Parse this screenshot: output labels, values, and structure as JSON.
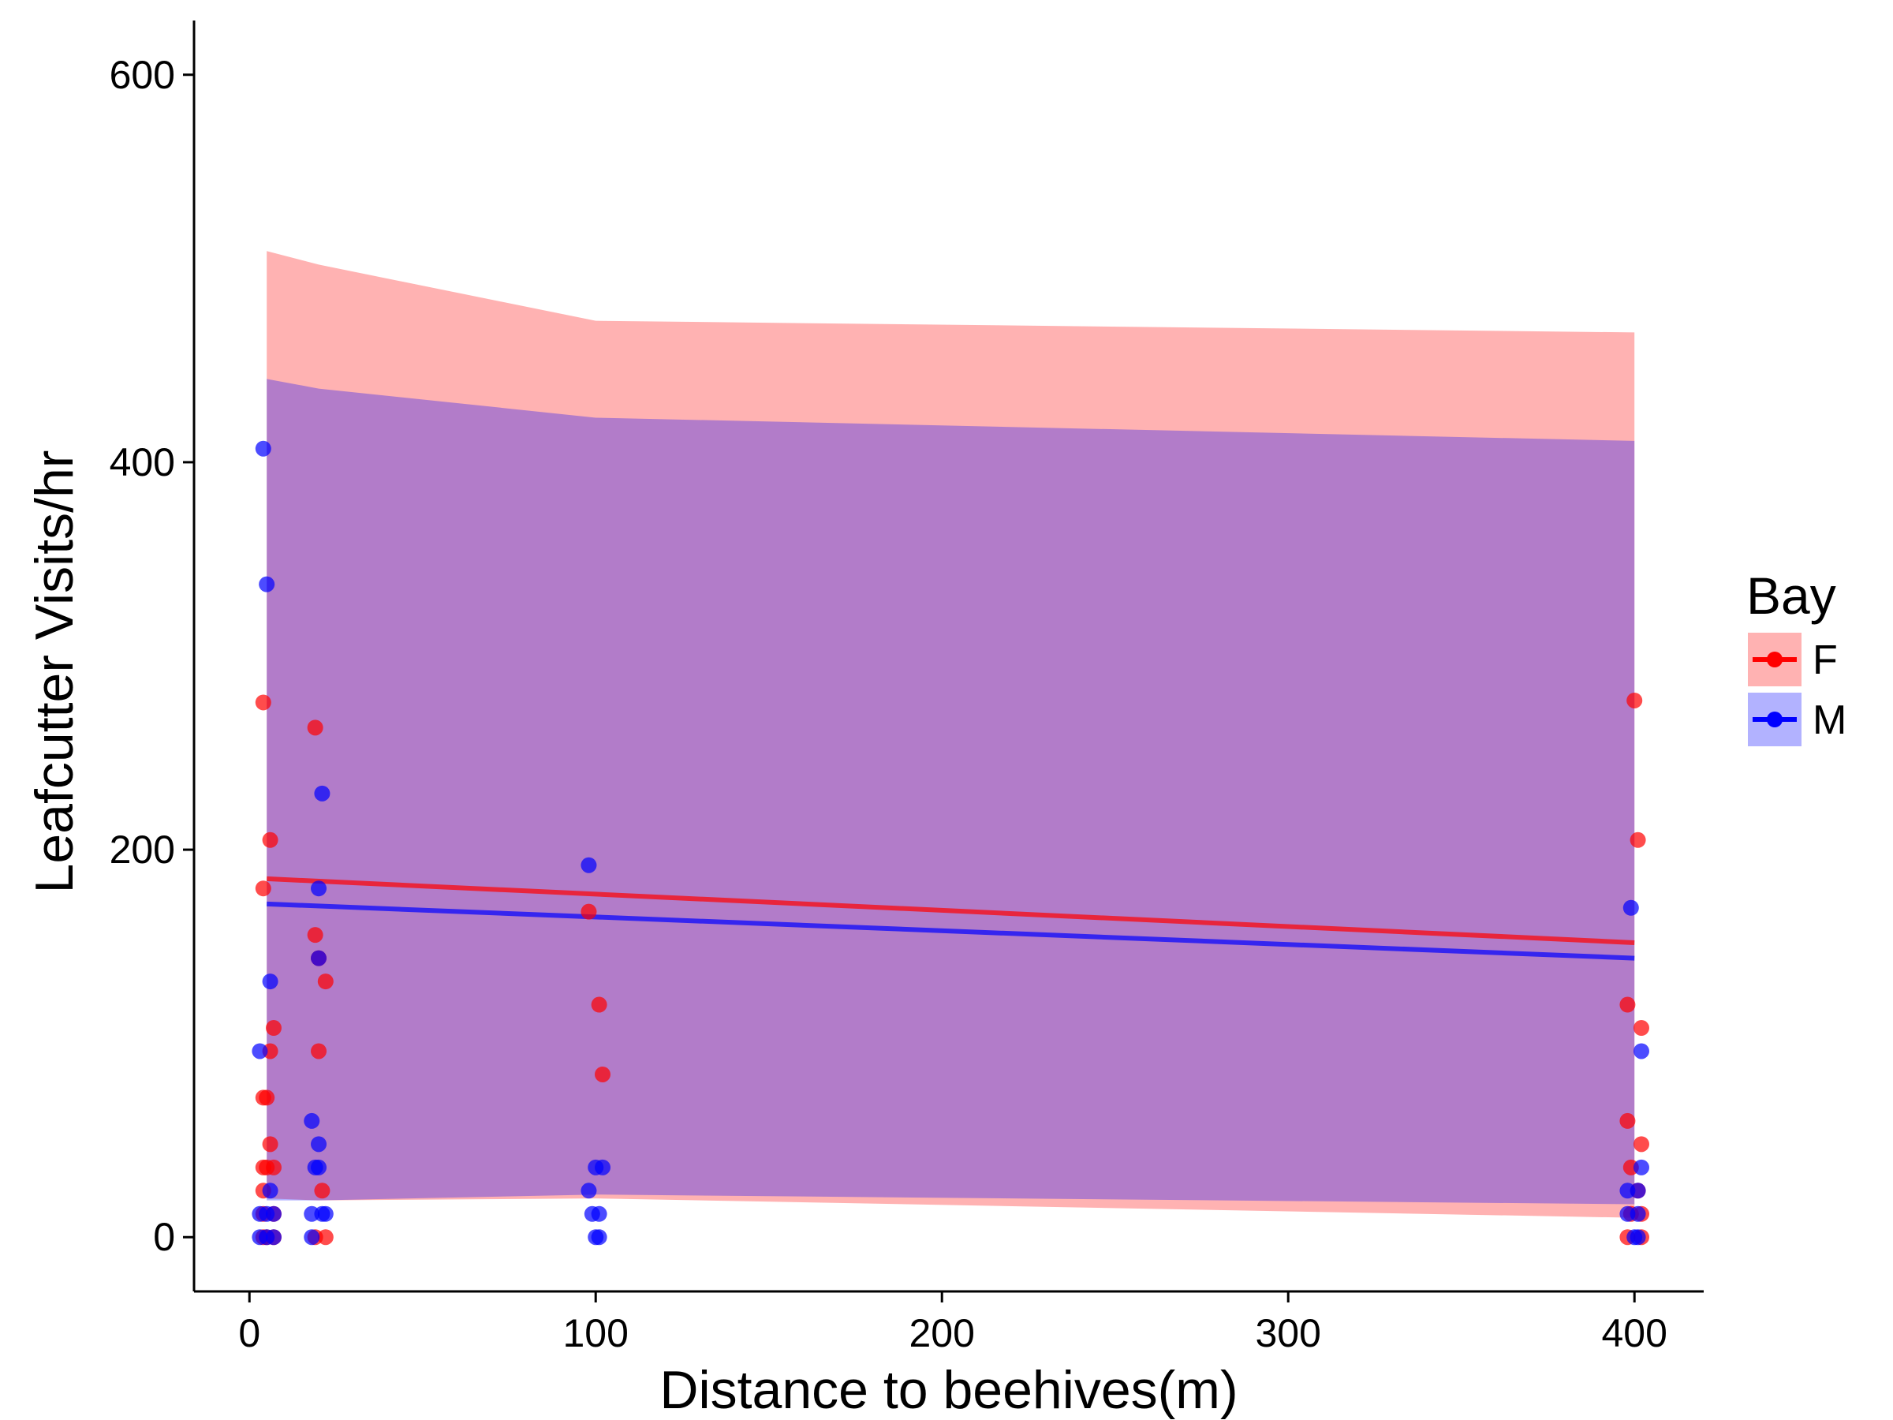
{
  "chart_data": {
    "type": "scatter",
    "title": "",
    "xlabel": "Distance to beehives(m)",
    "ylabel": "Leafcutter Visits/hr",
    "xlim": [
      -16,
      420
    ],
    "ylim": [
      -28,
      628
    ],
    "x_ticks": [
      0,
      100,
      200,
      300,
      400
    ],
    "y_ticks": [
      0,
      200,
      400,
      600
    ],
    "grid": false,
    "legend": {
      "title": "Bay",
      "position": "right"
    },
    "series": [
      {
        "name": "F",
        "color": "#ff0000",
        "points": [
          {
            "x": 4,
            "y": 0
          },
          {
            "x": 4,
            "y": 12
          },
          {
            "x": 4,
            "y": 24
          },
          {
            "x": 4,
            "y": 36
          },
          {
            "x": 4,
            "y": 72
          },
          {
            "x": 4,
            "y": 180
          },
          {
            "x": 4,
            "y": 276
          },
          {
            "x": 5,
            "y": 0
          },
          {
            "x": 5,
            "y": 36
          },
          {
            "x": 5,
            "y": 72
          },
          {
            "x": 6,
            "y": 48
          },
          {
            "x": 6,
            "y": 205
          },
          {
            "x": 6,
            "y": 96
          },
          {
            "x": 7,
            "y": 0
          },
          {
            "x": 7,
            "y": 12
          },
          {
            "x": 7,
            "y": 36
          },
          {
            "x": 7,
            "y": 108
          },
          {
            "x": 19,
            "y": 0
          },
          {
            "x": 19,
            "y": 156
          },
          {
            "x": 19,
            "y": 263
          },
          {
            "x": 20,
            "y": 144
          },
          {
            "x": 20,
            "y": 96
          },
          {
            "x": 21,
            "y": 24
          },
          {
            "x": 22,
            "y": 0
          },
          {
            "x": 22,
            "y": 132
          },
          {
            "x": 98,
            "y": 168
          },
          {
            "x": 101,
            "y": 120
          },
          {
            "x": 102,
            "y": 84
          },
          {
            "x": 398,
            "y": 0
          },
          {
            "x": 398,
            "y": 60
          },
          {
            "x": 398,
            "y": 120
          },
          {
            "x": 399,
            "y": 36
          },
          {
            "x": 399,
            "y": 12
          },
          {
            "x": 400,
            "y": 277
          },
          {
            "x": 401,
            "y": 205
          },
          {
            "x": 401,
            "y": 24
          },
          {
            "x": 402,
            "y": 48
          },
          {
            "x": 402,
            "y": 108
          },
          {
            "x": 402,
            "y": 0
          },
          {
            "x": 402,
            "y": 12
          }
        ],
        "fit": {
          "x": [
            5,
            400
          ],
          "y": [
            185,
            152
          ]
        },
        "ribbon": {
          "x": [
            5,
            20,
            100,
            400
          ],
          "upper": [
            509,
            502,
            473,
            467
          ],
          "lower": [
            20,
            19,
            20,
            10
          ]
        }
      },
      {
        "name": "M",
        "color": "#0000ff",
        "points": [
          {
            "x": 3,
            "y": 0
          },
          {
            "x": 3,
            "y": 12
          },
          {
            "x": 3,
            "y": 96
          },
          {
            "x": 4,
            "y": 407
          },
          {
            "x": 5,
            "y": 0
          },
          {
            "x": 5,
            "y": 337
          },
          {
            "x": 5,
            "y": 12
          },
          {
            "x": 6,
            "y": 132
          },
          {
            "x": 6,
            "y": 24
          },
          {
            "x": 7,
            "y": 0
          },
          {
            "x": 7,
            "y": 12
          },
          {
            "x": 18,
            "y": 0
          },
          {
            "x": 18,
            "y": 12
          },
          {
            "x": 18,
            "y": 60
          },
          {
            "x": 19,
            "y": 36
          },
          {
            "x": 20,
            "y": 36
          },
          {
            "x": 20,
            "y": 48
          },
          {
            "x": 20,
            "y": 180
          },
          {
            "x": 20,
            "y": 144
          },
          {
            "x": 21,
            "y": 12
          },
          {
            "x": 21,
            "y": 229
          },
          {
            "x": 22,
            "y": 12
          },
          {
            "x": 98,
            "y": 24
          },
          {
            "x": 98,
            "y": 192
          },
          {
            "x": 99,
            "y": 12
          },
          {
            "x": 100,
            "y": 0
          },
          {
            "x": 100,
            "y": 36
          },
          {
            "x": 101,
            "y": 12
          },
          {
            "x": 101,
            "y": 0
          },
          {
            "x": 102,
            "y": 36
          },
          {
            "x": 398,
            "y": 12
          },
          {
            "x": 398,
            "y": 24
          },
          {
            "x": 399,
            "y": 170
          },
          {
            "x": 400,
            "y": 0
          },
          {
            "x": 401,
            "y": 0
          },
          {
            "x": 401,
            "y": 12
          },
          {
            "x": 401,
            "y": 24
          },
          {
            "x": 402,
            "y": 36
          },
          {
            "x": 402,
            "y": 96
          }
        ],
        "fit": {
          "x": [
            5,
            400
          ],
          "y": [
            172,
            144
          ]
        },
        "ribbon": {
          "x": [
            5,
            20,
            100,
            400
          ],
          "upper": [
            443,
            438,
            423,
            411
          ],
          "lower": [
            19,
            19,
            22,
            17
          ]
        }
      }
    ]
  }
}
